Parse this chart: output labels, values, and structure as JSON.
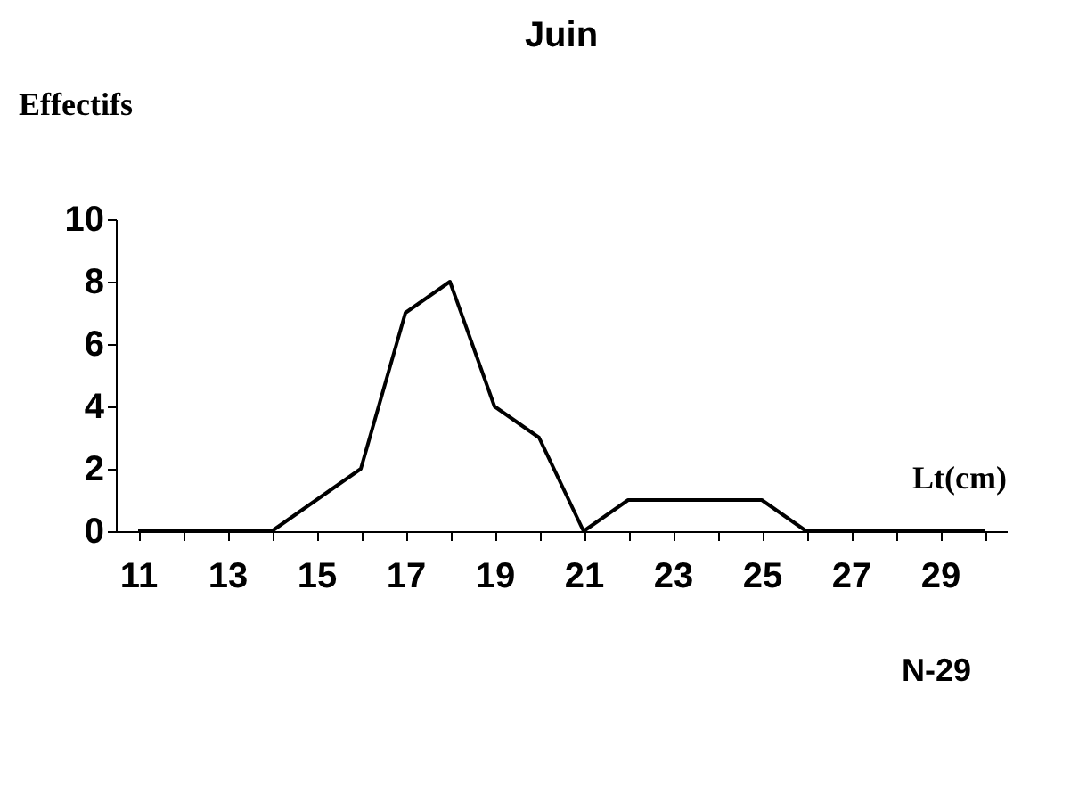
{
  "chart_data": {
    "type": "line",
    "title": "Juin",
    "ylabel": "Effectifs",
    "xlabel": "Lt(cm)",
    "categories": [
      "11",
      null,
      "13",
      null,
      "15",
      null,
      "17",
      null,
      "19",
      null,
      "21",
      null,
      "23",
      null,
      "25",
      null,
      "27",
      null,
      "29",
      null
    ],
    "series": [
      {
        "color": "#000000",
        "values": [
          0,
          0,
          0,
          0,
          1,
          2,
          7,
          8,
          4,
          3,
          0,
          1,
          1,
          1,
          1,
          0,
          0,
          0,
          0,
          0
        ]
      }
    ],
    "ylim": [
      0,
      10
    ],
    "yticks": [
      0,
      2,
      4,
      6,
      8,
      10
    ],
    "grid": false,
    "legend": false,
    "marker": "none",
    "line_style": "solid",
    "annotations": [
      "N-29"
    ]
  }
}
